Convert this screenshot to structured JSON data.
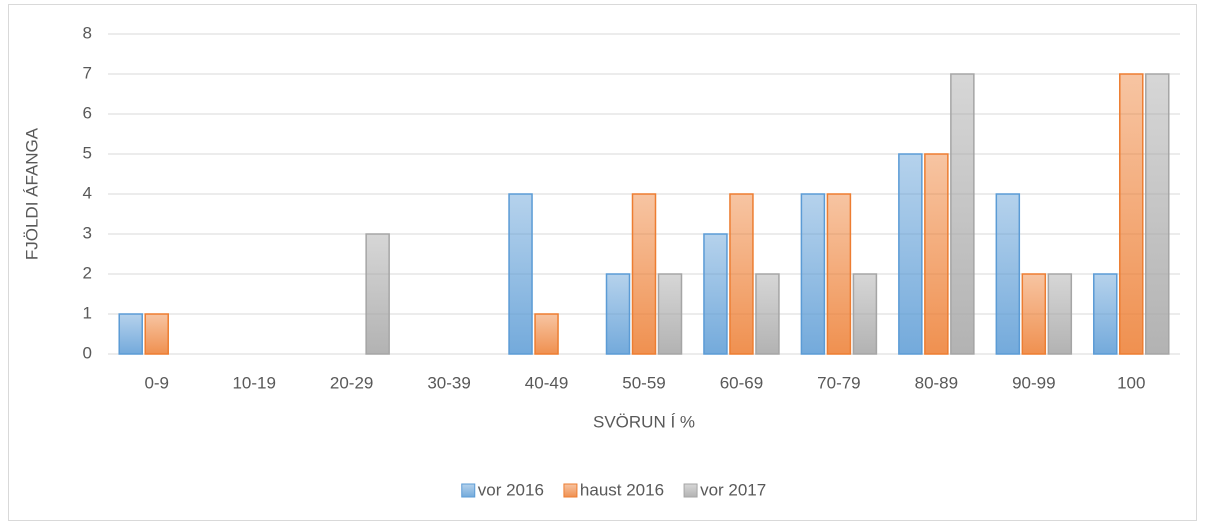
{
  "chart_data": {
    "type": "bar",
    "x_label": "SVÖRUN Í %",
    "y_label": "FJÖLDI ÁFANGA",
    "categories": [
      "0-9",
      "10-19",
      "20-29",
      "30-39",
      "40-49",
      "50-59",
      "60-69",
      "70-79",
      "80-89",
      "90-99",
      "100"
    ],
    "series": [
      {
        "name": "vor 2016",
        "color": "#5b9bd5",
        "values": [
          1,
          0,
          0,
          0,
          4,
          2,
          3,
          4,
          5,
          4,
          2
        ]
      },
      {
        "name": "haust 2016",
        "color": "#ed7d31",
        "values": [
          1,
          0,
          0,
          0,
          1,
          4,
          4,
          4,
          5,
          2,
          7
        ]
      },
      {
        "name": "vor 2017",
        "color": "#a5a5a5",
        "values": [
          0,
          0,
          3,
          0,
          0,
          2,
          2,
          2,
          7,
          2,
          7
        ]
      }
    ],
    "ylim": [
      0,
      8
    ],
    "yticks": [
      0,
      1,
      2,
      3,
      4,
      5,
      6,
      7,
      8
    ],
    "grid": true,
    "legend": "bottom"
  }
}
